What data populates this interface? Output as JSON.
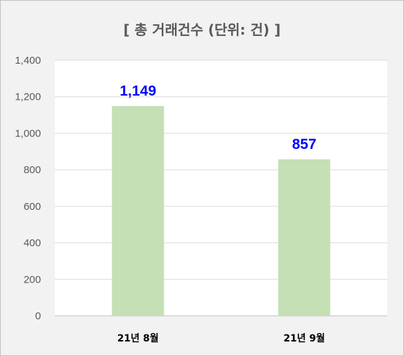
{
  "chart_data": {
    "type": "bar",
    "title": "[ 총 거래건수 (단위: 건) ]",
    "categories": [
      "21년 8월",
      "21년 9월"
    ],
    "values": [
      1149,
      857
    ],
    "data_labels": [
      "1,149",
      "857"
    ],
    "y_ticks": [
      "0",
      "200",
      "400",
      "600",
      "800",
      "1,000",
      "1,200",
      "1,400"
    ],
    "ylim": [
      0,
      1400
    ],
    "xlabel": "",
    "ylabel": "",
    "grid": true,
    "legend": "none",
    "bar_color": "#c5e0b4",
    "label_color": "#0000ff",
    "plot_background": "#ffffff",
    "chart_background": "#f2f2f2"
  }
}
